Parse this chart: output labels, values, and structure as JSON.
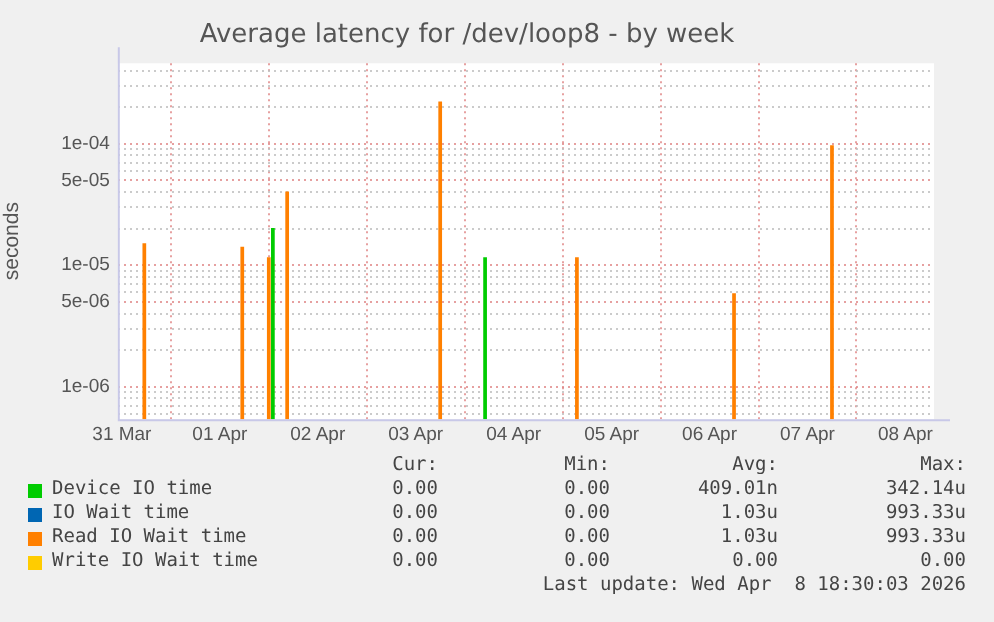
{
  "chart_data": {
    "type": "bar",
    "title": "Average latency for /dev/loop8 - by week",
    "ylabel": "seconds",
    "log": "y",
    "grid": true,
    "legend": "bottom",
    "xlim": [
      "2026-03-31T11:00",
      "2026-04-08T19:00"
    ],
    "xticks": [
      {
        "value": "2026-03-31T12:00",
        "label": "31 Mar"
      },
      {
        "value": "2026-04-01T00:00",
        "label": null
      },
      {
        "value": "2026-04-01T12:00",
        "label": "01 Apr"
      },
      {
        "value": "2026-04-02T00:00",
        "label": null
      },
      {
        "value": "2026-04-02T12:00",
        "label": "02 Apr"
      },
      {
        "value": "2026-04-03T00:00",
        "label": null
      },
      {
        "value": "2026-04-03T12:00",
        "label": "03 Apr"
      },
      {
        "value": "2026-04-04T00:00",
        "label": null
      },
      {
        "value": "2026-04-04T12:00",
        "label": "04 Apr"
      },
      {
        "value": "2026-04-05T00:00",
        "label": null
      },
      {
        "value": "2026-04-05T12:00",
        "label": "05 Apr"
      },
      {
        "value": "2026-04-06T00:00",
        "label": null
      },
      {
        "value": "2026-04-06T12:00",
        "label": "06 Apr"
      },
      {
        "value": "2026-04-07T00:00",
        "label": null
      },
      {
        "value": "2026-04-07T12:00",
        "label": "07 Apr"
      },
      {
        "value": "2026-04-08T00:00",
        "label": null
      },
      {
        "value": "2026-04-08T12:00",
        "label": "08 Apr"
      }
    ],
    "ylim": [
      5.4e-07,
      0.00046
    ],
    "yticks": [
      {
        "value": 6e-07,
        "label": null
      },
      {
        "value": 7e-07,
        "label": null
      },
      {
        "value": 8e-07,
        "label": null
      },
      {
        "value": 9e-07,
        "label": null
      },
      {
        "value": 1e-06,
        "label": "1e-06"
      },
      {
        "value": 2e-06,
        "label": null
      },
      {
        "value": 3e-06,
        "label": null
      },
      {
        "value": 4e-06,
        "label": null
      },
      {
        "value": 5e-06,
        "label": "5e-06"
      },
      {
        "value": 6e-06,
        "label": null
      },
      {
        "value": 7e-06,
        "label": null
      },
      {
        "value": 8e-06,
        "label": null
      },
      {
        "value": 9e-06,
        "label": null
      },
      {
        "value": 1e-05,
        "label": "1e-05"
      },
      {
        "value": 2e-05,
        "label": null
      },
      {
        "value": 3e-05,
        "label": null
      },
      {
        "value": 4e-05,
        "label": null
      },
      {
        "value": 5e-05,
        "label": "5e-05"
      },
      {
        "value": 6e-05,
        "label": null
      },
      {
        "value": 7e-05,
        "label": null
      },
      {
        "value": 8e-05,
        "label": null
      },
      {
        "value": 9e-05,
        "label": null
      },
      {
        "value": 0.0001,
        "label": "1e-04"
      },
      {
        "value": 0.0002,
        "label": null
      },
      {
        "value": 0.0003,
        "label": null
      },
      {
        "value": 0.0004,
        "label": null
      }
    ],
    "series": [
      {
        "name": "Device IO time",
        "color": "#00cc00",
        "x": [
          "2026-04-02T01:00",
          "2026-04-04T05:00"
        ],
        "values": [
          2e-05,
          1.15e-05
        ]
      },
      {
        "name": "IO Wait time",
        "color": "#0066b3"
      },
      {
        "name": "Read IO Wait time",
        "color": "#ff8000",
        "x": [
          "2026-03-31T17:30",
          "2026-04-01T17:30",
          "2026-04-02T00:00",
          "2026-04-02T04:30",
          "2026-04-03T18:00",
          "2026-04-05T03:30",
          "2026-04-06T18:00",
          "2026-04-07T18:00"
        ],
        "values": [
          1.5e-05,
          1.4e-05,
          1.15e-05,
          4e-05,
          0.00022,
          1.15e-05,
          5.8e-06,
          9.6e-05
        ]
      },
      {
        "name": "Write IO Wait time",
        "color": "#ffcc00"
      }
    ],
    "annotations": [
      "Cur:",
      "Min:",
      "Avg:",
      "Max:",
      "0.00",
      "0.00",
      "409.01n",
      "342.14u",
      "0.00",
      "0.00",
      "1.03u",
      "993.33u",
      "0.00",
      "0.00",
      "1.03u",
      "993.33u",
      "0.00",
      "0.00",
      "0.00",
      "0.00",
      "Last update: Wed Apr  8 18:30:03 2026"
    ]
  }
}
